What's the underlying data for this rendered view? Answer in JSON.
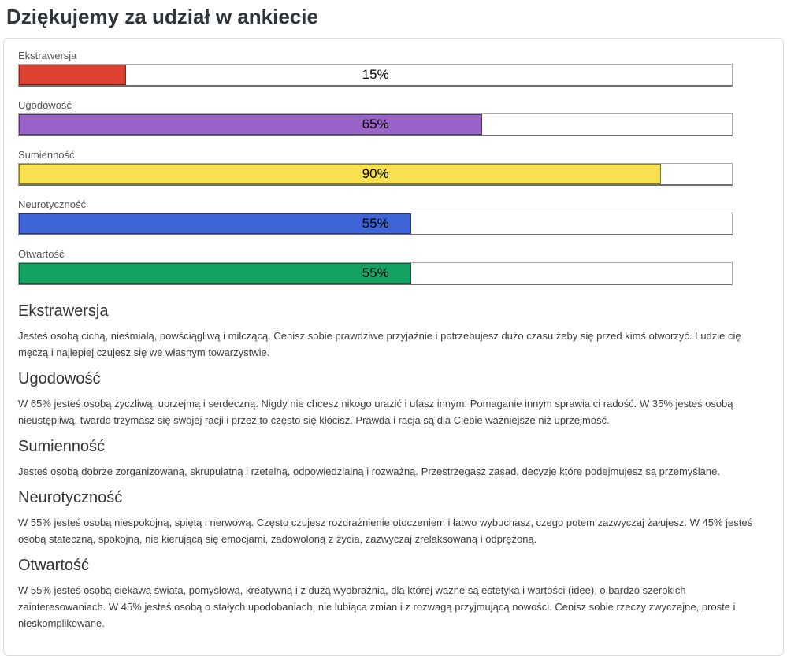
{
  "page": {
    "title": "Dziękujemy za udział w ankiecie"
  },
  "chart_data": {
    "type": "bar",
    "orientation": "horizontal",
    "categories": [
      "Ekstrawersja",
      "Ugodowość",
      "Sumienność",
      "Neurotyczność",
      "Otwartość"
    ],
    "values": [
      15,
      65,
      90,
      55,
      55
    ],
    "value_labels": [
      "15%",
      "65%",
      "90%",
      "55%",
      "55%"
    ],
    "bar_colors": [
      "#dd4132",
      "#9a63c8",
      "#f7e14e",
      "#3e64d5",
      "#14a263"
    ],
    "xlim": [
      0,
      100
    ],
    "grid": false,
    "legend": false
  },
  "traits": [
    {
      "label": "Ekstrawersja",
      "percent": 15,
      "percent_label": "15%",
      "color": "#dd4132"
    },
    {
      "label": "Ugodowość",
      "percent": 65,
      "percent_label": "65%",
      "color": "#9a63c8"
    },
    {
      "label": "Sumienność",
      "percent": 90,
      "percent_label": "90%",
      "color": "#f7e14e"
    },
    {
      "label": "Neurotyczność",
      "percent": 55,
      "percent_label": "55%",
      "color": "#3e64d5"
    },
    {
      "label": "Otwartość",
      "percent": 55,
      "percent_label": "55%",
      "color": "#14a263"
    }
  ],
  "sections": [
    {
      "heading": "Ekstrawersja",
      "body": "Jesteś osobą cichą, nieśmiałą, powściągliwą i milczącą. Cenisz sobie prawdziwe przyjaźnie i potrzebujesz dużo czasu żeby się przed kimś otworzyć. Ludzie cię męczą i najlepiej czujesz się we własnym towarzystwie."
    },
    {
      "heading": "Ugodowość",
      "body": "W 65% jesteś osobą życzliwą, uprzejmą i serdeczną. Nigdy nie chcesz nikogo urazić i ufasz innym. Pomaganie innym sprawia ci radość. W 35% jesteś osobą nieustępliwą, twardo trzymasz się swojej racji i przez to często się kłócisz. Prawda i racja są dla Ciebie ważniejsze niż uprzejmość."
    },
    {
      "heading": "Sumienność",
      "body": "Jesteś osobą dobrze zorganizowaną, skrupulatną i rzetelną, odpowiedzialną i rozważną. Przestrzegasz zasad, decyzje które podejmujesz są przemyślane."
    },
    {
      "heading": "Neurotyczność",
      "body": "W 55% jesteś osobą niespokojną, spiętą i nerwową. Często czujesz rozdrażnienie otoczeniem i łatwo wybuchasz, czego potem zazwyczaj żałujesz. W 45% jesteś osobą stateczną, spokojną, nie kierującą się emocjami, zadowoloną z życia, zazwyczaj zrelaksowaną i odprężoną."
    },
    {
      "heading": "Otwartość",
      "body": "W 55% jesteś osobą ciekawą świata, pomysłową, kreatywną i z dużą wyobraźnią, dla której ważne są estetyka i wartości (idee), o bardzo szerokich zainteresowaniach. W 45% jesteś osobą o stałych upodobaniach, nie lubiąca zmian i z rozwagą przyjmującą nowości. Cenisz sobie rzeczy zwyczajne, proste i nieskomplikowane."
    }
  ]
}
